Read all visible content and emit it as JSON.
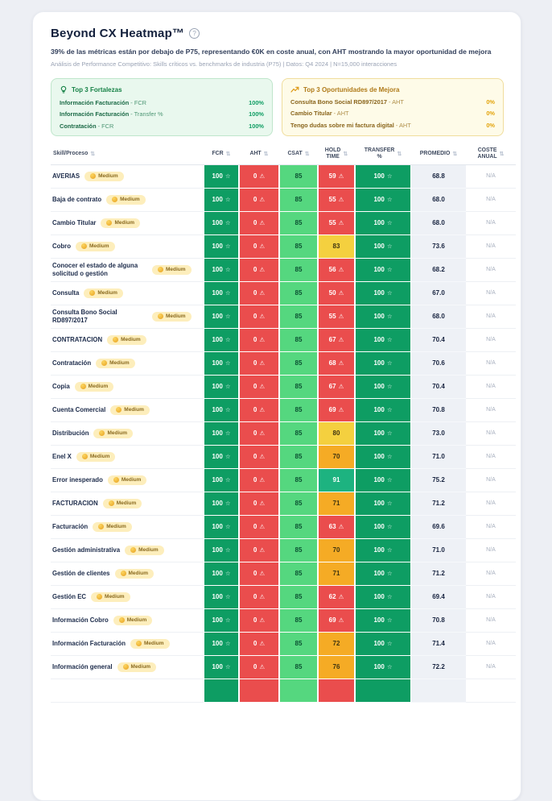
{
  "header": {
    "title": "Beyond CX Heatmap™",
    "subtitle": "39% de las métricas están por debajo de P75, representando €0K en coste anual, con AHT mostrando la mayor oportunidad de mejora",
    "meta": "Análisis de Performance Competitivo: Skills críticos vs. benchmarks de industria (P75) | Datos: Q4 2024 | N=15,000 interacciones"
  },
  "panels": {
    "strengths": {
      "title": "Top 3 Fortalezas",
      "items": [
        {
          "skill": "Información Facturación",
          "metric": "FCR",
          "value": "100%"
        },
        {
          "skill": "Información Facturación",
          "metric": "Transfer %",
          "value": "100%"
        },
        {
          "skill": "Contratación",
          "metric": "FCR",
          "value": "100%"
        }
      ]
    },
    "opportunities": {
      "title": "Top 3 Oportunidades de Mejora",
      "items": [
        {
          "skill": "Consulta Bono Social RD897/2017",
          "metric": "AHT",
          "value": "0%"
        },
        {
          "skill": "Cambio Titular",
          "metric": "AHT",
          "value": "0%"
        },
        {
          "skill": "Tengo dudas sobre mi factura digital",
          "metric": "AHT",
          "value": "0%"
        }
      ]
    }
  },
  "table": {
    "badge_label": "Medium",
    "columns": [
      {
        "key": "skill",
        "label": "Skill/Proceso"
      },
      {
        "key": "fcr",
        "label": "FCR"
      },
      {
        "key": "aht",
        "label": "AHT"
      },
      {
        "key": "csat",
        "label": "CSAT"
      },
      {
        "key": "hold",
        "label": "HOLD\nTIME"
      },
      {
        "key": "transfer",
        "label": "TRANSFER\n%"
      },
      {
        "key": "promedio",
        "label": "PROMEDIO"
      },
      {
        "key": "coste",
        "label": "COSTE\nANUAL"
      }
    ],
    "rows": [
      {
        "name": "AVERIAS",
        "fcr": "100",
        "aht": "0",
        "csat": "85",
        "hold": "59",
        "hold_tone": "red",
        "transfer": "100",
        "promedio": "68.8",
        "coste": "N/A"
      },
      {
        "name": "Baja de contrato",
        "fcr": "100",
        "aht": "0",
        "csat": "85",
        "hold": "55",
        "hold_tone": "red",
        "transfer": "100",
        "promedio": "68.0",
        "coste": "N/A"
      },
      {
        "name": "Cambio Titular",
        "fcr": "100",
        "aht": "0",
        "csat": "85",
        "hold": "55",
        "hold_tone": "red",
        "transfer": "100",
        "promedio": "68.0",
        "coste": "N/A"
      },
      {
        "name": "Cobro",
        "fcr": "100",
        "aht": "0",
        "csat": "85",
        "hold": "83",
        "hold_tone": "yellow",
        "transfer": "100",
        "promedio": "73.6",
        "coste": "N/A"
      },
      {
        "name": "Conocer el estado de alguna solicitud o gestión",
        "fcr": "100",
        "aht": "0",
        "csat": "85",
        "hold": "56",
        "hold_tone": "red",
        "transfer": "100",
        "promedio": "68.2",
        "coste": "N/A"
      },
      {
        "name": "Consulta",
        "fcr": "100",
        "aht": "0",
        "csat": "85",
        "hold": "50",
        "hold_tone": "red",
        "transfer": "100",
        "promedio": "67.0",
        "coste": "N/A"
      },
      {
        "name": "Consulta Bono Social RD897/2017",
        "fcr": "100",
        "aht": "0",
        "csat": "85",
        "hold": "55",
        "hold_tone": "red",
        "transfer": "100",
        "promedio": "68.0",
        "coste": "N/A"
      },
      {
        "name": "CONTRATACION",
        "fcr": "100",
        "aht": "0",
        "csat": "85",
        "hold": "67",
        "hold_tone": "red",
        "transfer": "100",
        "promedio": "70.4",
        "coste": "N/A"
      },
      {
        "name": "Contratación",
        "fcr": "100",
        "aht": "0",
        "csat": "85",
        "hold": "68",
        "hold_tone": "red",
        "transfer": "100",
        "promedio": "70.6",
        "coste": "N/A"
      },
      {
        "name": "Copia",
        "fcr": "100",
        "aht": "0",
        "csat": "85",
        "hold": "67",
        "hold_tone": "red",
        "transfer": "100",
        "promedio": "70.4",
        "coste": "N/A"
      },
      {
        "name": "Cuenta Comercial",
        "fcr": "100",
        "aht": "0",
        "csat": "85",
        "hold": "69",
        "hold_tone": "red",
        "transfer": "100",
        "promedio": "70.8",
        "coste": "N/A"
      },
      {
        "name": "Distribución",
        "fcr": "100",
        "aht": "0",
        "csat": "85",
        "hold": "80",
        "hold_tone": "yellow",
        "transfer": "100",
        "promedio": "73.0",
        "coste": "N/A"
      },
      {
        "name": "Enel X",
        "fcr": "100",
        "aht": "0",
        "csat": "85",
        "hold": "70",
        "hold_tone": "orange",
        "transfer": "100",
        "promedio": "71.0",
        "coste": "N/A"
      },
      {
        "name": "Error inesperado",
        "fcr": "100",
        "aht": "0",
        "csat": "85",
        "hold": "91",
        "hold_tone": "mid",
        "transfer": "100",
        "promedio": "75.2",
        "coste": "N/A"
      },
      {
        "name": "FACTURACION",
        "fcr": "100",
        "aht": "0",
        "csat": "85",
        "hold": "71",
        "hold_tone": "orange",
        "transfer": "100",
        "promedio": "71.2",
        "coste": "N/A"
      },
      {
        "name": "Facturación",
        "fcr": "100",
        "aht": "0",
        "csat": "85",
        "hold": "63",
        "hold_tone": "red",
        "transfer": "100",
        "promedio": "69.6",
        "coste": "N/A"
      },
      {
        "name": "Gestión administrativa",
        "fcr": "100",
        "aht": "0",
        "csat": "85",
        "hold": "70",
        "hold_tone": "orange",
        "transfer": "100",
        "promedio": "71.0",
        "coste": "N/A"
      },
      {
        "name": "Gestión de clientes",
        "fcr": "100",
        "aht": "0",
        "csat": "85",
        "hold": "71",
        "hold_tone": "orange",
        "transfer": "100",
        "promedio": "71.2",
        "coste": "N/A"
      },
      {
        "name": "Gestión EC",
        "fcr": "100",
        "aht": "0",
        "csat": "85",
        "hold": "62",
        "hold_tone": "red",
        "transfer": "100",
        "promedio": "69.4",
        "coste": "N/A"
      },
      {
        "name": "Información Cobro",
        "fcr": "100",
        "aht": "0",
        "csat": "85",
        "hold": "69",
        "hold_tone": "red",
        "transfer": "100",
        "promedio": "70.8",
        "coste": "N/A"
      },
      {
        "name": "Información Facturación",
        "fcr": "100",
        "aht": "0",
        "csat": "85",
        "hold": "72",
        "hold_tone": "orange",
        "transfer": "100",
        "promedio": "71.4",
        "coste": "N/A"
      },
      {
        "name": "Información general",
        "fcr": "100",
        "aht": "0",
        "csat": "85",
        "hold": "76",
        "hold_tone": "orange",
        "transfer": "100",
        "promedio": "72.2",
        "coste": "N/A"
      }
    ],
    "partial_row": {
      "name": "",
      "fcr": "",
      "aht": "",
      "csat": "",
      "hold": "",
      "hold_tone": "red",
      "transfer": "",
      "promedio": "",
      "coste": ""
    }
  },
  "icons": {
    "sort": "⇅",
    "star": "☆",
    "warning": "⚠",
    "help": "?"
  },
  "colors": {
    "green_dark": "#0e9d63",
    "green_mid": "#1db380",
    "green_light": "#55d77f",
    "yellow": "#f4d03f",
    "orange": "#f5ab25",
    "red": "#ea4d4d"
  }
}
